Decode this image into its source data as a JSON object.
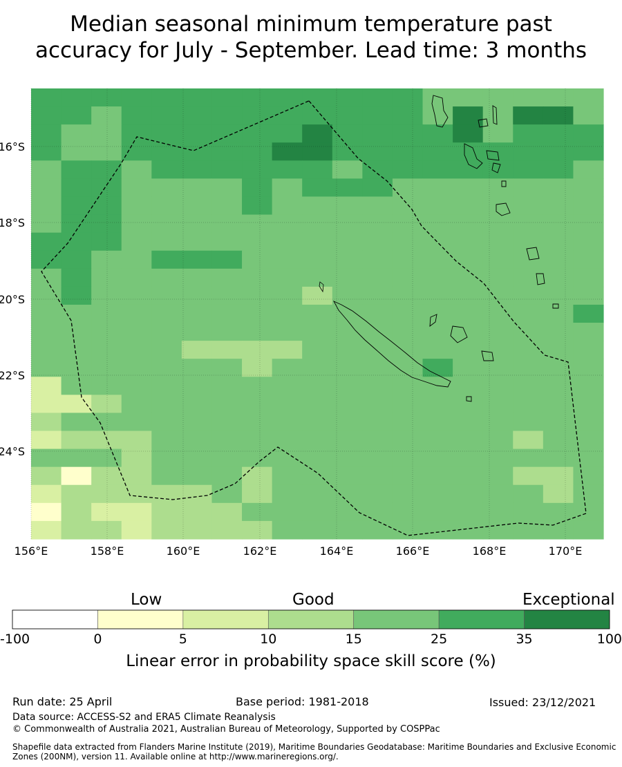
{
  "title_line1": "Median seasonal minimum temperature past",
  "title_line2": "accuracy for July - September. Lead time: 3 months",
  "map": {
    "lat_labels": [
      "16°S",
      "18°S",
      "20°S",
      "22°S",
      "24°S"
    ],
    "lon_labels": [
      "156°E",
      "158°E",
      "160°E",
      "162°E",
      "164°E",
      "166°E",
      "168°E",
      "170°E"
    ],
    "grid": [
      "5555555555555444444",
      "5545555555555464664",
      "5445555556555564555",
      "5445555566555555555",
      "4554555555455555554",
      "4554444545554444444",
      "4554444544444444444",
      "4554444444444444444",
      "5554444444444444444",
      "5544555444444444444",
      "4544444444444444444",
      "4544444443444444444",
      "4444444444444444445",
      "4444444444444444444",
      "4444433334444444444",
      "4444444344444544444",
      "2444444444444444444",
      "2234444444444444444",
      "3444444444444444444",
      "2333444444444444344",
      "4443444444444444444",
      "3133444344444444334",
      "2333334344444444434",
      "1322333444444444444",
      "2332333344444444444"
    ]
  },
  "colorbar": {
    "labels": {
      "low": "Low",
      "good": "Good",
      "exceptional": "Exceptional"
    },
    "ticks": [
      "-100",
      "0",
      "5",
      "10",
      "15",
      "25",
      "35",
      "100"
    ],
    "colors": [
      "#ffffff",
      "#ffffcc",
      "#d9f0a3",
      "#addd8e",
      "#78c679",
      "#41ab5d",
      "#238443"
    ],
    "title": "Linear error in probability space skill score (%)"
  },
  "footer": {
    "run_date": "Run date: 25 April",
    "base_period": "Base period: 1981-2018",
    "issued": "Issued: 23/12/2021",
    "data_source": "Data source: ACCESS-S2 and ERA5 Climate Reanalysis",
    "copyright": "© Commonwealth of Australia 2021, Australian Bureau of Meteorology, Supported by COSPPac",
    "shapefile_line1": "Shapefile data extracted from Flanders Marine Institute (2019), Maritime Boundaries Geodatabase: Maritime Boundaries and Exclusive Economic",
    "shapefile_line2": "Zones (200NM), version 11. Available online at http://www.marineregions.org/."
  }
}
